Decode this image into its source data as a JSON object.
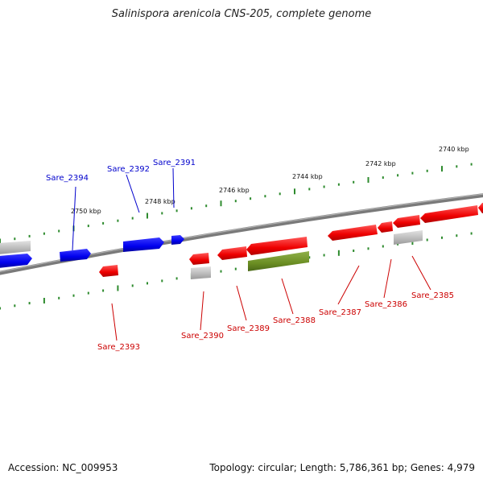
{
  "title": "Salinispora arenicola CNS-205, complete genome",
  "footer": {
    "accession": "Accession: NC_009953",
    "summary": "Topology: circular; Length: 5,786,361 bp; Genes: 4,979"
  },
  "scale_labels": [
    "2740 kbp",
    "2742 kbp",
    "2744 kbp",
    "2746 kbp",
    "2748 kbp",
    "2750 kbp"
  ],
  "colors": {
    "forward_gene": "#0000ee",
    "reverse_gene": "#ee0000",
    "other_feature": "#6b8e23",
    "pseudo_feature": "#b8b8b8",
    "backbone": "#808080",
    "tick": "#2e8b2e",
    "forward_label": "#0000cc",
    "reverse_label": "#cc0000"
  },
  "genes": [
    {
      "name": "Sare_2394",
      "strand": "forward"
    },
    {
      "name": "Sare_2392",
      "strand": "forward"
    },
    {
      "name": "Sare_2391",
      "strand": "forward"
    },
    {
      "name": "Sare_2393",
      "strand": "reverse"
    },
    {
      "name": "Sare_2390",
      "strand": "reverse"
    },
    {
      "name": "Sare_2389",
      "strand": "reverse"
    },
    {
      "name": "Sare_2388",
      "strand": "reverse"
    },
    {
      "name": "Sare_2387",
      "strand": "reverse"
    },
    {
      "name": "Sare_2386",
      "strand": "reverse"
    },
    {
      "name": "Sare_2385",
      "strand": "reverse"
    }
  ]
}
